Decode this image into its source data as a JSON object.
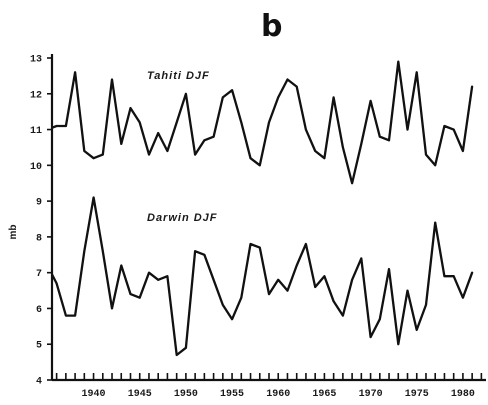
{
  "chart_data": {
    "type": "line",
    "panel_label": "b",
    "title": "",
    "xlabel": "",
    "ylabel": "mb",
    "xlim": [
      1935.5,
      1982.5
    ],
    "ylim": [
      4,
      13
    ],
    "x_tick_labels": [
      "1940",
      "1945",
      "1950",
      "1955",
      "1960",
      "1965",
      "1970",
      "1975",
      "1980"
    ],
    "x_tick_values": [
      1940,
      1945,
      1950,
      1955,
      1960,
      1965,
      1970,
      1975,
      1980
    ],
    "y_tick_labels": [
      "4",
      "5",
      "6",
      "7",
      "8",
      "9",
      "10",
      "11",
      "12",
      "13"
    ],
    "y_tick_values": [
      4,
      5,
      6,
      7,
      8,
      9,
      10,
      11,
      12,
      13
    ],
    "grid": false,
    "series": [
      {
        "name": "Tahiti DJF",
        "x": [
          1935,
          1936,
          1937,
          1938,
          1939,
          1940,
          1941,
          1942,
          1943,
          1944,
          1945,
          1946,
          1947,
          1948,
          1949,
          1950,
          1951,
          1952,
          1953,
          1954,
          1955,
          1956,
          1957,
          1958,
          1959,
          1960,
          1961,
          1962,
          1963,
          1964,
          1965,
          1966,
          1967,
          1968,
          1969,
          1970,
          1971,
          1972,
          1973,
          1974,
          1975,
          1976,
          1977,
          1978,
          1979,
          1980,
          1981
        ],
        "values": [
          11.0,
          11.1,
          11.1,
          12.6,
          10.4,
          10.2,
          10.3,
          12.4,
          10.6,
          11.6,
          11.2,
          10.3,
          10.9,
          10.4,
          11.2,
          12.0,
          10.3,
          10.7,
          10.8,
          11.9,
          12.1,
          11.2,
          10.2,
          10.0,
          11.2,
          11.9,
          12.4,
          12.2,
          11.0,
          10.4,
          10.2,
          11.9,
          10.5,
          9.5,
          10.6,
          11.8,
          10.8,
          10.7,
          12.9,
          11.0,
          12.6,
          10.3,
          10.0,
          11.1,
          11.0,
          10.4,
          12.2
        ]
      },
      {
        "name": "Darwin DJF",
        "x": [
          1935,
          1936,
          1937,
          1938,
          1939,
          1940,
          1941,
          1942,
          1943,
          1944,
          1945,
          1946,
          1947,
          1948,
          1949,
          1950,
          1951,
          1952,
          1953,
          1954,
          1955,
          1956,
          1957,
          1958,
          1959,
          1960,
          1961,
          1962,
          1963,
          1964,
          1965,
          1966,
          1967,
          1968,
          1969,
          1970,
          1971,
          1972,
          1973,
          1974,
          1975,
          1976,
          1977,
          1978,
          1979,
          1980,
          1981
        ],
        "values": [
          7.2,
          6.7,
          5.8,
          5.8,
          7.6,
          9.1,
          7.6,
          6.0,
          7.2,
          6.4,
          6.3,
          7.0,
          6.8,
          6.9,
          4.7,
          4.9,
          7.6,
          7.5,
          6.8,
          6.1,
          5.7,
          6.3,
          7.8,
          7.7,
          6.4,
          6.8,
          6.5,
          7.2,
          7.8,
          6.6,
          6.9,
          6.2,
          5.8,
          6.8,
          7.4,
          5.2,
          5.7,
          7.1,
          5.0,
          6.5,
          5.4,
          6.1,
          8.4,
          6.9,
          6.9,
          6.3,
          7.0
        ]
      }
    ]
  }
}
